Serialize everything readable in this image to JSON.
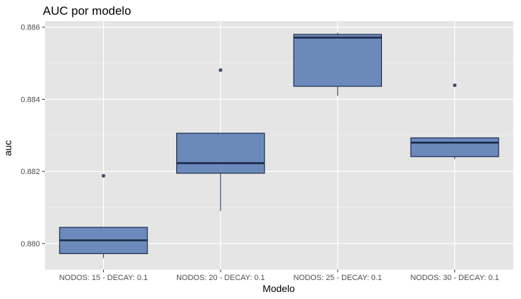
{
  "chart_data": {
    "type": "boxplot",
    "title": "AUC por modelo",
    "xlabel": "Modelo",
    "ylabel": "auc",
    "categories": [
      "NODOS: 15 - DECAY: 0.1",
      "NODOS: 20 - DECAY: 0.1",
      "NODOS: 25 - DECAY: 0.1",
      "NODOS: 30 - DECAY: 0.1"
    ],
    "boxes": [
      {
        "whisker_low": 0.8796,
        "q1": 0.87972,
        "median": 0.88009,
        "q3": 0.88045,
        "whisker_high": 0.88045,
        "outliers": [
          0.88188
        ]
      },
      {
        "whisker_low": 0.8809,
        "q1": 0.88195,
        "median": 0.88223,
        "q3": 0.88306,
        "whisker_high": 0.88306,
        "outliers": [
          0.88481
        ]
      },
      {
        "whisker_low": 0.8841,
        "q1": 0.88436,
        "median": 0.88571,
        "q3": 0.8858,
        "whisker_high": 0.88585,
        "outliers": []
      },
      {
        "whisker_low": 0.88234,
        "q1": 0.88241,
        "median": 0.8828,
        "q3": 0.88293,
        "whisker_high": 0.88293,
        "outliers": [
          0.88439
        ]
      }
    ],
    "yticks": [
      0.88,
      0.882,
      0.884,
      0.886
    ],
    "ytick_labels": [
      "0.880",
      "0.882",
      "0.884",
      "0.886"
    ],
    "ylim": [
      0.87928,
      0.88617
    ],
    "grid": true,
    "legend": "none",
    "colors": {
      "panel": "#e5e5e5",
      "grid_major": "#ffffff",
      "box_fill": "#5a7db5",
      "box_stroke": "#1e2d4f",
      "median": "#1a2744",
      "outlier": "#3f4f6b",
      "tick_label": "#4d4d4d"
    }
  }
}
